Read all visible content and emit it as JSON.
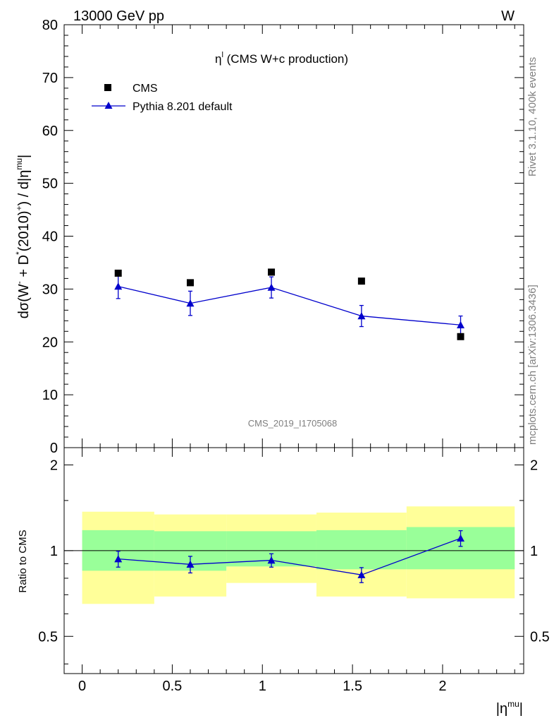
{
  "header": {
    "energy_label": "13000 GeV pp",
    "process_label": "W"
  },
  "side_labels": {
    "rivet": "Rivet 3.1.10,  400k events",
    "mcplots": "mcplots.cern.ch [arXiv:1306.3436]"
  },
  "watermark": "CMS_2019_I1705068",
  "chart_data": [
    {
      "type": "scatter",
      "title": "η^l (CMS W+c production)",
      "title_main": "η",
      "title_sup": "l",
      "title_rest": " (CMS W+c production)",
      "ylabel": "dσ(W⁻ + D*(2010)⁺) / d|η^mu|",
      "ylim": [
        0,
        80
      ],
      "xlim": [
        -0.1,
        2.45
      ],
      "y_ticks": [
        0,
        10,
        20,
        30,
        40,
        50,
        60,
        70,
        80
      ],
      "legend_position": "top-left",
      "series": [
        {
          "name": "CMS",
          "style": "markers",
          "color": "#000000",
          "x": [
            0.2,
            0.6,
            1.05,
            1.55,
            2.1
          ],
          "y": [
            33.0,
            31.2,
            33.2,
            31.5,
            21.0
          ]
        },
        {
          "name": "Pythia 8.201 default",
          "style": "line+markers",
          "color": "#0000cc",
          "x": [
            0.2,
            0.6,
            1.05,
            1.55,
            2.1
          ],
          "y": [
            30.5,
            27.3,
            30.3,
            24.9,
            23.2
          ],
          "yerr": [
            2.3,
            2.3,
            2.0,
            2.0,
            1.7
          ]
        }
      ]
    },
    {
      "type": "scatter",
      "title": "",
      "xlabel": "|η^mu|",
      "xlabel_main": "|η",
      "xlabel_sup": "mu",
      "xlabel_end": "|",
      "ylabel": "Ratio to CMS",
      "ylim": [
        0.37,
        2.3
      ],
      "log_y": true,
      "xlim": [
        -0.1,
        2.45
      ],
      "x_ticks": [
        0,
        0.5,
        1,
        1.5,
        2
      ],
      "x_tick_labels": [
        "0",
        "0.5",
        "1",
        "1.5",
        "2"
      ],
      "y_ticks": [
        0.5,
        1,
        2
      ],
      "y_tick_labels": [
        "0.5",
        "1",
        "2"
      ],
      "reference_line": 1,
      "bands": {
        "bin_edges": [
          0.0,
          0.4,
          0.8,
          1.3,
          1.8,
          2.4
        ],
        "stat_color": "#99ff99",
        "total_color": "#ffff99",
        "stat_low": [
          0.85,
          0.85,
          0.88,
          0.86,
          0.86
        ],
        "stat_high": [
          1.18,
          1.17,
          1.17,
          1.18,
          1.21
        ],
        "total_low": [
          0.65,
          0.69,
          0.77,
          0.69,
          0.68
        ],
        "total_high": [
          1.37,
          1.34,
          1.34,
          1.36,
          1.43
        ]
      },
      "series": [
        {
          "name": "Pythia 8.201 default",
          "color": "#0000cc",
          "x": [
            0.2,
            0.6,
            1.05,
            1.55,
            2.1
          ],
          "y": [
            0.935,
            0.895,
            0.925,
            0.822,
            1.105
          ],
          "yerr": [
            0.06,
            0.06,
            0.05,
            0.05,
            0.07
          ]
        }
      ]
    }
  ]
}
